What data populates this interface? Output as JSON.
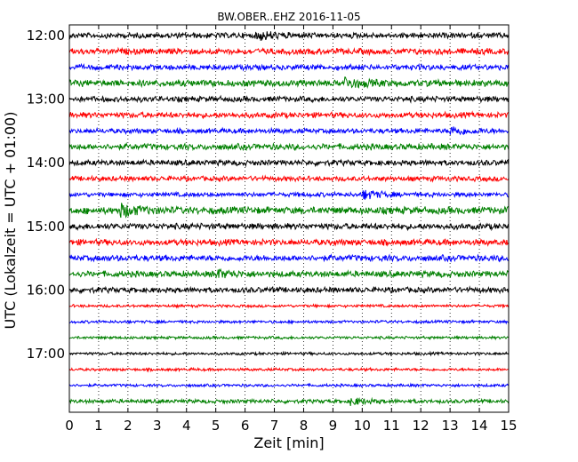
{
  "chart_data": {
    "type": "line",
    "title": "BW.OBER..EHZ 2016-11-05",
    "xlabel": "Zeit  [min]",
    "ylabel": "UTC (Lokalzeit = UTC + 01:00)",
    "xlim": [
      0,
      15
    ],
    "x_ticks": [
      "0",
      "1",
      "2",
      "3",
      "4",
      "5",
      "6",
      "7",
      "8",
      "9",
      "10",
      "11",
      "12",
      "13",
      "14",
      "15"
    ],
    "y_tick_labels": [
      "12:00",
      "13:00",
      "14:00",
      "15:00",
      "16:00",
      "17:00"
    ],
    "trace_interval_minutes": 15,
    "traces_start": "12:00",
    "trace_count": 24,
    "color_cycle": [
      "#000000",
      "#ff0000",
      "#0000ff",
      "#008000"
    ],
    "grid_x": "dotted vertical lines every 1 min",
    "trace_amplitudes": [
      0.5,
      0.55,
      0.5,
      0.6,
      0.5,
      0.5,
      0.45,
      0.55,
      0.5,
      0.45,
      0.4,
      0.65,
      0.55,
      0.55,
      0.55,
      0.55,
      0.5,
      0.25,
      0.25,
      0.25,
      0.25,
      0.25,
      0.25,
      0.35
    ],
    "events": [
      {
        "trace": 0,
        "minute": 6.4,
        "amp": 0.7
      },
      {
        "trace": 3,
        "minute": 9.4,
        "amp": 0.8
      },
      {
        "trace": 6,
        "minute": 13.0,
        "amp": 0.7
      },
      {
        "trace": 10,
        "minute": 10.0,
        "amp": 0.8
      },
      {
        "trace": 11,
        "minute": 1.7,
        "amp": 1.1
      },
      {
        "trace": 15,
        "minute": 5.0,
        "amp": 0.6
      },
      {
        "trace": 23,
        "minute": 9.6,
        "amp": 0.6
      }
    ]
  }
}
